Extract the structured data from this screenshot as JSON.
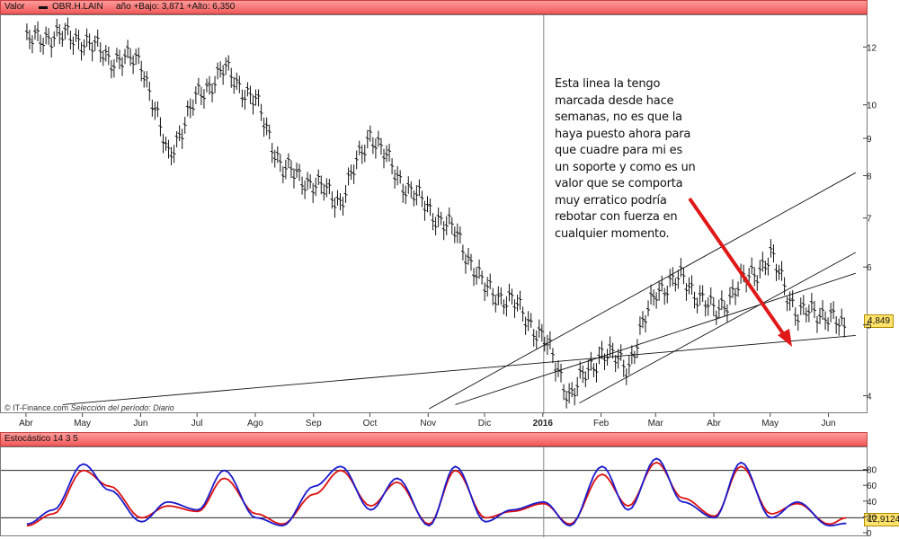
{
  "header": {
    "prefix": "Valor",
    "ticker": "OBR.H.LAIN",
    "stats": "año +Bajo: 3,871 +Alto: 6,350"
  },
  "credit": {
    "source": "© IT-Finance.com",
    "period": "Selección del período: Diario"
  },
  "annotation": "Esta linea la tengo marcada desde hace semanas, no es que la haya puesto ahora para que cuadre para mi es un soporte y como es un valor que se comporta muy erratico podría rebotar con fuerza en cualquier momento.",
  "last_price_label": "4,849",
  "stoch_header": "Estocástico 14 3 5",
  "stoch_last_label": "12,9124",
  "colors": {
    "header_bg": "#f26b6b",
    "k_line": "#1a1acc",
    "d_line": "#dd1010",
    "arrow": "#e01818",
    "last_label_bg": "#ffe36a"
  },
  "chart_data": [
    {
      "type": "line",
      "subtype": "ohlc-bar",
      "y_scale": "log",
      "ylim": [
        3.85,
        13.0
      ],
      "y_ticks": [
        4,
        5,
        6,
        7,
        8,
        9,
        10,
        12
      ],
      "x_ticks": [
        "Abr",
        "May",
        "Jun",
        "Jul",
        "Ago",
        "Sep",
        "Oct",
        "Nov",
        "Dic",
        "2016",
        "Feb",
        "Mar",
        "Abr",
        "May",
        "Jun"
      ],
      "x": [
        "2015-04-01",
        "2015-04-15",
        "2015-05-01",
        "2015-05-15",
        "2015-06-01",
        "2015-06-15",
        "2015-07-01",
        "2015-07-15",
        "2015-08-01",
        "2015-08-15",
        "2015-09-01",
        "2015-09-15",
        "2015-10-01",
        "2015-10-15",
        "2015-11-01",
        "2015-11-15",
        "2015-12-01",
        "2015-12-15",
        "2016-01-01",
        "2016-01-15",
        "2016-02-01",
        "2016-02-15",
        "2016-03-01",
        "2016-03-15",
        "2016-04-01",
        "2016-04-15",
        "2016-05-01",
        "2016-05-15",
        "2016-06-01",
        "2016-06-10"
      ],
      "series": [
        {
          "values": [
            12.2,
            12.5,
            12.3,
            11.6,
            11.5,
            8.5,
            10.3,
            11.2,
            10.1,
            8.2,
            7.8,
            7.4,
            9.2,
            8.0,
            7.2,
            6.7,
            5.6,
            5.4,
            4.8,
            4.0,
            4.6,
            4.4,
            5.6,
            5.8,
            5.2,
            5.7,
            6.2,
            5.2,
            5.2,
            4.849
          ]
        }
      ],
      "trendlines": [
        {
          "from": [
            "2015-04-20",
            3.9
          ],
          "to": [
            "2016-06-15",
            4.85
          ]
        },
        {
          "from": [
            "2015-11-01",
            3.85
          ],
          "to": [
            "2016-06-15",
            8.1
          ]
        },
        {
          "from": [
            "2015-11-15",
            3.9
          ],
          "to": [
            "2016-06-15",
            5.9
          ]
        },
        {
          "from": [
            "2016-01-20",
            3.92
          ],
          "to": [
            "2016-06-15",
            6.3
          ]
        }
      ]
    },
    {
      "type": "line",
      "ylim": [
        0,
        100
      ],
      "y_ticks": [
        0,
        20,
        40,
        60,
        80
      ],
      "reference_lines": [
        20,
        80
      ],
      "series": [
        {
          "values": [
            12,
            30,
            88,
            55,
            15,
            40,
            30,
            80,
            20,
            10,
            60,
            85,
            30,
            70,
            10,
            85,
            15,
            30,
            40,
            10,
            85,
            30,
            95,
            40,
            20,
            90,
            20,
            40,
            10,
            12.9124
          ]
        },
        {
          "values": [
            10,
            25,
            80,
            60,
            20,
            35,
            28,
            70,
            25,
            12,
            50,
            80,
            35,
            65,
            12,
            80,
            20,
            28,
            38,
            12,
            75,
            35,
            90,
            45,
            22,
            85,
            25,
            38,
            12,
            20
          ]
        }
      ]
    }
  ]
}
